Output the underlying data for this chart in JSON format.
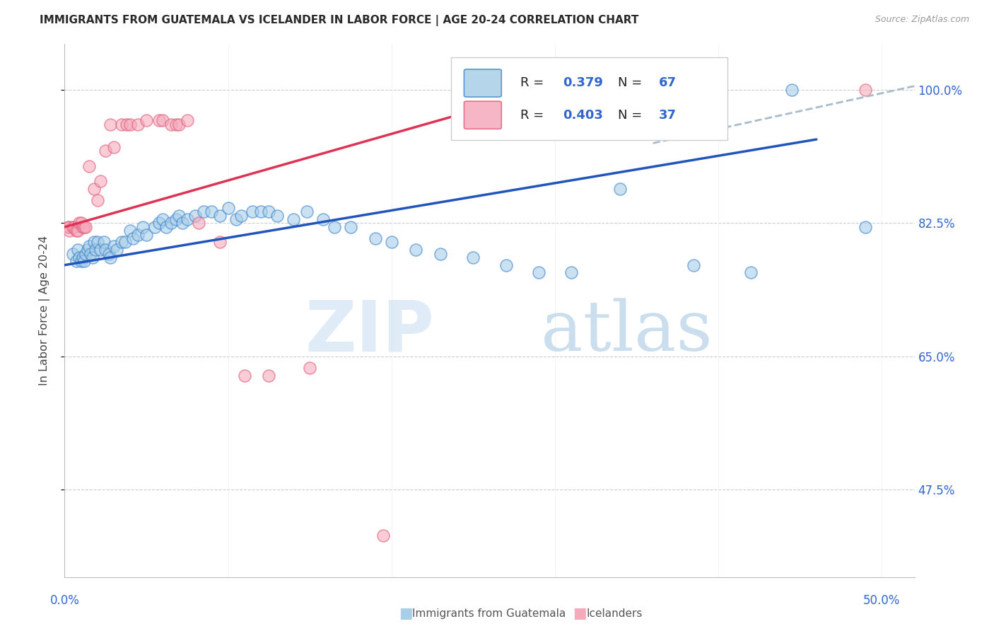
{
  "title": "IMMIGRANTS FROM GUATEMALA VS ICELANDER IN LABOR FORCE | AGE 20-24 CORRELATION CHART",
  "source": "Source: ZipAtlas.com",
  "ylabel": "In Labor Force | Age 20-24",
  "ytick_vals": [
    0.475,
    0.65,
    0.825,
    1.0
  ],
  "ytick_labels": [
    "47.5%",
    "65.0%",
    "82.5%",
    "100.0%"
  ],
  "xlim": [
    0.0,
    0.52
  ],
  "ylim": [
    0.36,
    1.06
  ],
  "label_blue": "Immigrants from Guatemala",
  "label_pink": "Icelanders",
  "blue_fill": "#A8CEE8",
  "pink_fill": "#F5AABC",
  "blue_edge": "#4488CC",
  "pink_edge": "#E06080",
  "line_blue_color": "#2255BB",
  "line_pink_color": "#DD3355",
  "line_dashed_color": "#AABBCC",
  "blue_scatter_x": [
    0.005,
    0.007,
    0.008,
    0.009,
    0.01,
    0.011,
    0.012,
    0.013,
    0.014,
    0.015,
    0.016,
    0.017,
    0.018,
    0.019,
    0.02,
    0.022,
    0.024,
    0.025,
    0.027,
    0.028,
    0.03,
    0.032,
    0.035,
    0.037,
    0.04,
    0.042,
    0.045,
    0.048,
    0.05,
    0.055,
    0.058,
    0.06,
    0.062,
    0.065,
    0.068,
    0.07,
    0.072,
    0.075,
    0.08,
    0.085,
    0.09,
    0.095,
    0.1,
    0.105,
    0.108,
    0.115,
    0.12,
    0.125,
    0.13,
    0.14,
    0.148,
    0.158,
    0.165,
    0.175,
    0.19,
    0.2,
    0.215,
    0.23,
    0.25,
    0.27,
    0.29,
    0.31,
    0.34,
    0.385,
    0.42,
    0.445,
    0.49
  ],
  "blue_scatter_y": [
    0.785,
    0.775,
    0.79,
    0.78,
    0.775,
    0.78,
    0.775,
    0.785,
    0.79,
    0.795,
    0.785,
    0.78,
    0.8,
    0.79,
    0.8,
    0.79,
    0.8,
    0.79,
    0.785,
    0.78,
    0.795,
    0.79,
    0.8,
    0.8,
    0.815,
    0.805,
    0.81,
    0.82,
    0.81,
    0.82,
    0.825,
    0.83,
    0.82,
    0.825,
    0.83,
    0.835,
    0.825,
    0.83,
    0.835,
    0.84,
    0.84,
    0.835,
    0.845,
    0.83,
    0.835,
    0.84,
    0.84,
    0.84,
    0.835,
    0.83,
    0.84,
    0.83,
    0.82,
    0.82,
    0.805,
    0.8,
    0.79,
    0.785,
    0.78,
    0.77,
    0.76,
    0.76,
    0.87,
    0.77,
    0.76,
    1.0,
    0.82
  ],
  "pink_scatter_x": [
    0.002,
    0.003,
    0.003,
    0.005,
    0.006,
    0.007,
    0.008,
    0.009,
    0.01,
    0.011,
    0.012,
    0.013,
    0.015,
    0.018,
    0.02,
    0.022,
    0.025,
    0.028,
    0.03,
    0.035,
    0.038,
    0.04,
    0.045,
    0.05,
    0.058,
    0.06,
    0.065,
    0.068,
    0.07,
    0.075,
    0.082,
    0.095,
    0.11,
    0.125,
    0.15,
    0.195,
    0.49
  ],
  "pink_scatter_y": [
    0.82,
    0.82,
    0.815,
    0.82,
    0.82,
    0.815,
    0.815,
    0.825,
    0.825,
    0.82,
    0.82,
    0.82,
    0.9,
    0.87,
    0.855,
    0.88,
    0.92,
    0.955,
    0.925,
    0.955,
    0.955,
    0.955,
    0.955,
    0.96,
    0.96,
    0.96,
    0.955,
    0.955,
    0.955,
    0.96,
    0.825,
    0.8,
    0.625,
    0.625,
    0.635,
    0.415,
    1.0
  ],
  "blue_line_x": [
    0.0,
    0.46
  ],
  "blue_line_y": [
    0.77,
    0.935
  ],
  "pink_line_x": [
    0.0,
    0.27
  ],
  "pink_line_y": [
    0.82,
    0.985
  ],
  "dashed_line_x": [
    0.36,
    0.52
  ],
  "dashed_line_y": [
    0.93,
    1.005
  ],
  "watermark_zip": "ZIP",
  "watermark_atlas": "atlas",
  "bg_color": "#FFFFFF"
}
